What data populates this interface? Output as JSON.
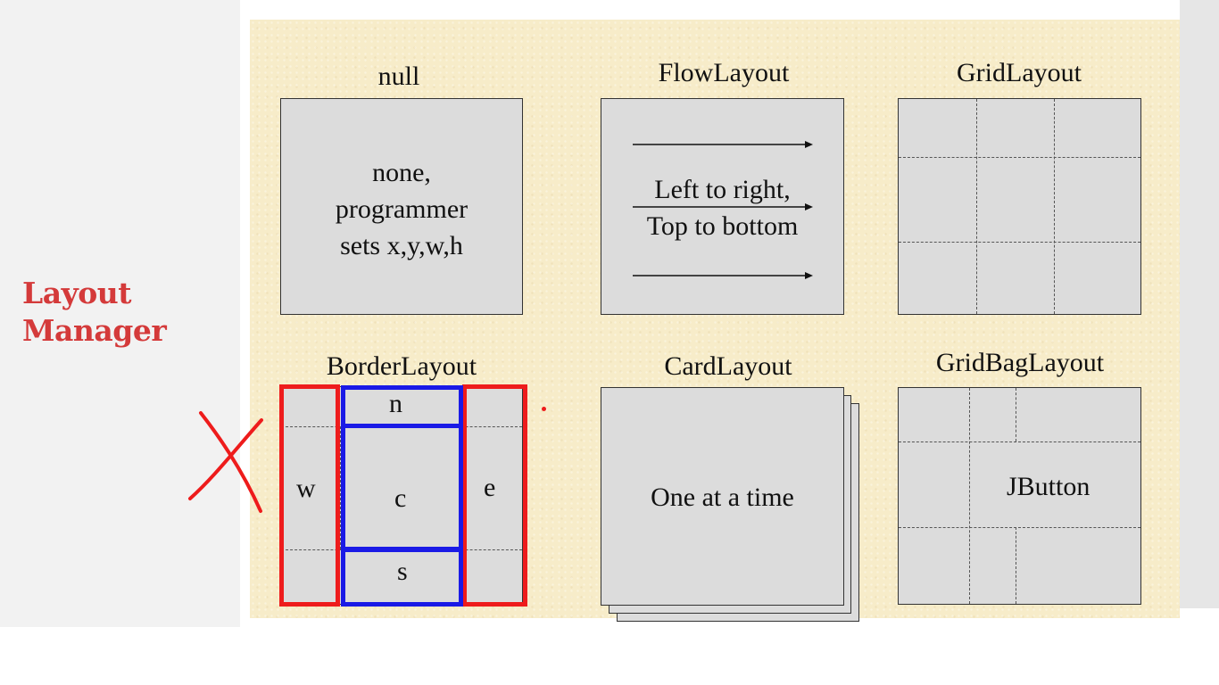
{
  "sidebar": {
    "title_line1": "Layout",
    "title_line2": "Manager"
  },
  "layouts": {
    "null": {
      "title": "null",
      "desc_line1": "none,",
      "desc_line2": "programmer",
      "desc_line3": "sets x,y,w,h"
    },
    "flow": {
      "title": "FlowLayout",
      "desc_line1": "Left to right,",
      "desc_line2": "Top to bottom"
    },
    "grid": {
      "title": "GridLayout"
    },
    "border": {
      "title": "BorderLayout",
      "north": "n",
      "west": "w",
      "center": "c",
      "east": "e",
      "south": "s"
    },
    "card": {
      "title": "CardLayout",
      "desc": "One at a time"
    },
    "gridbag": {
      "title": "GridBagLayout",
      "button": "JButton"
    }
  },
  "colors": {
    "annotation_red": "#ee1c1c",
    "annotation_blue": "#1a1ae6",
    "sidebar_title": "#d43a3a"
  }
}
